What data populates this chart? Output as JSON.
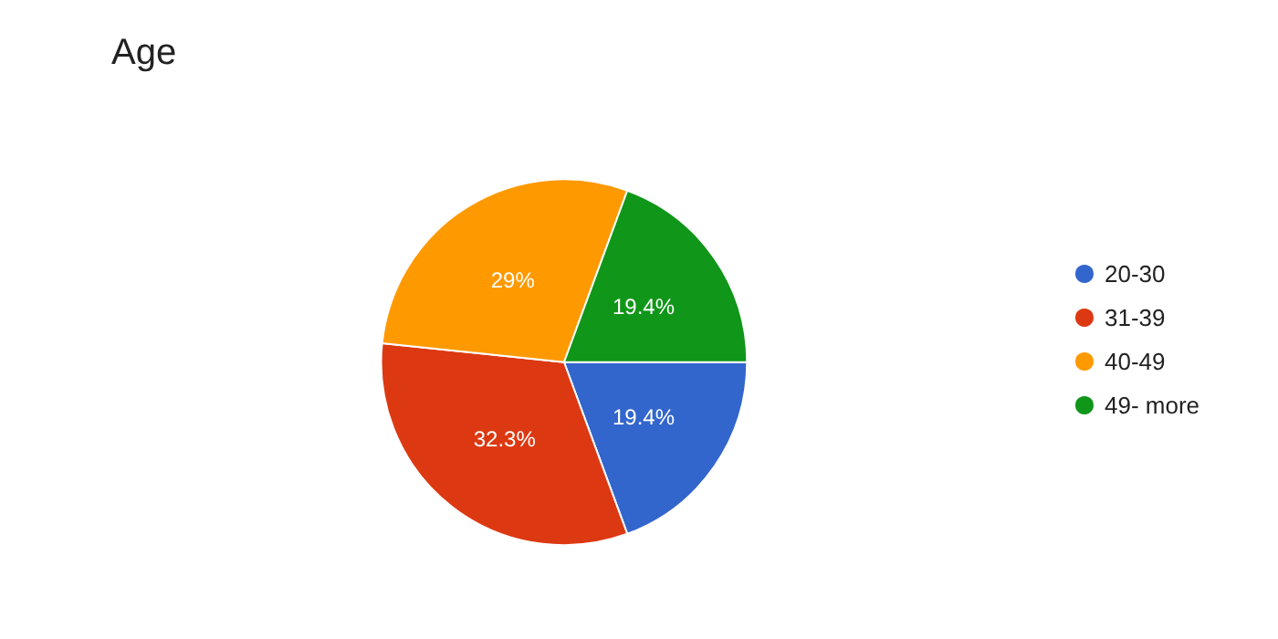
{
  "chart_data": {
    "type": "pie",
    "title": "Age",
    "categories": [
      "20-30",
      "31-39",
      "40-49",
      "49- more"
    ],
    "values": [
      19.4,
      32.3,
      29,
      19.4
    ],
    "value_labels": [
      "19.4%",
      "32.3%",
      "29%",
      "19.4%"
    ],
    "colors": [
      "#3366cc",
      "#dc3912",
      "#ff9900",
      "#109618"
    ],
    "legend": "right"
  }
}
